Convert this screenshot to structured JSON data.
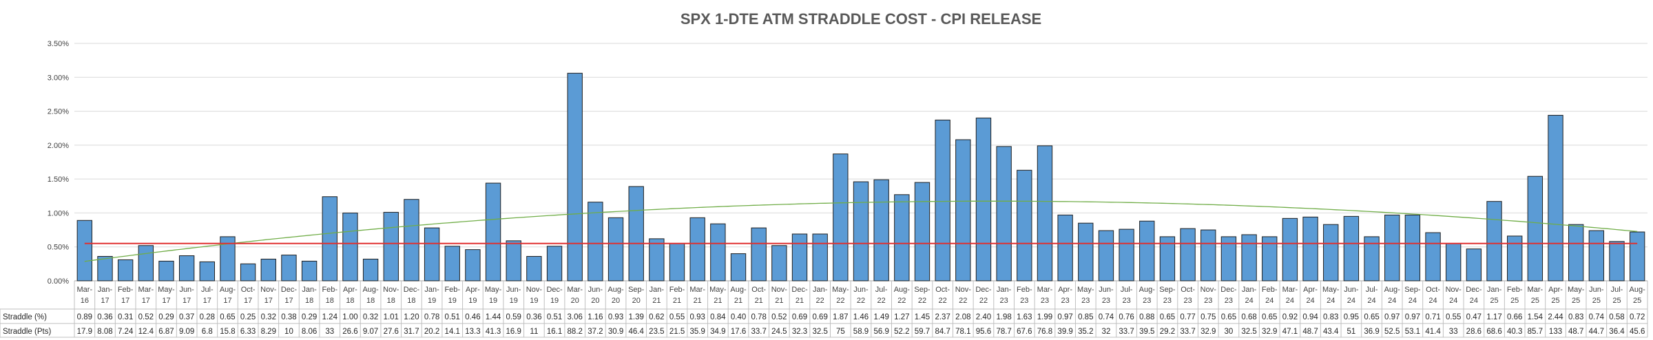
{
  "chart_data": {
    "type": "bar",
    "title": "SPX 1-DTE ATM STRADDLE COST - CPI RELEASE",
    "xlabel": "",
    "ylabel": "",
    "ylim": [
      0,
      0.035
    ],
    "yticks": [
      "0.00%",
      "0.50%",
      "1.00%",
      "1.50%",
      "2.00%",
      "2.50%",
      "3.00%",
      "3.50%"
    ],
    "categories": [
      [
        "Mar-",
        "16"
      ],
      [
        "Jan-",
        "17"
      ],
      [
        "Feb-",
        "17"
      ],
      [
        "Mar-",
        "17"
      ],
      [
        "May-",
        "17"
      ],
      [
        "Jun-",
        "17"
      ],
      [
        "Jul-",
        "17"
      ],
      [
        "Aug-",
        "17"
      ],
      [
        "Oct-",
        "17"
      ],
      [
        "Nov-",
        "17"
      ],
      [
        "Dec-",
        "17"
      ],
      [
        "Jan-",
        "18"
      ],
      [
        "Feb-",
        "18"
      ],
      [
        "Apr-",
        "18"
      ],
      [
        "Aug-",
        "18"
      ],
      [
        "Nov-",
        "18"
      ],
      [
        "Dec-",
        "18"
      ],
      [
        "Jan-",
        "19"
      ],
      [
        "Feb-",
        "19"
      ],
      [
        "Apr-",
        "19"
      ],
      [
        "May-",
        "19"
      ],
      [
        "Jun-",
        "19"
      ],
      [
        "Nov-",
        "19"
      ],
      [
        "Dec-",
        "19"
      ],
      [
        "Mar-",
        "20"
      ],
      [
        "Jun-",
        "20"
      ],
      [
        "Aug-",
        "20"
      ],
      [
        "Sep-",
        "20"
      ],
      [
        "Jan-",
        "21"
      ],
      [
        "Feb-",
        "21"
      ],
      [
        "Mar-",
        "21"
      ],
      [
        "May-",
        "21"
      ],
      [
        "Aug-",
        "21"
      ],
      [
        "Oct-",
        "21"
      ],
      [
        "Nov-",
        "21"
      ],
      [
        "Dec-",
        "21"
      ],
      [
        "Jan-",
        "22"
      ],
      [
        "May-",
        "22"
      ],
      [
        "Jun-",
        "22"
      ],
      [
        "Jul-",
        "22"
      ],
      [
        "Aug-",
        "22"
      ],
      [
        "Sep-",
        "22"
      ],
      [
        "Oct-",
        "22"
      ],
      [
        "Nov-",
        "22"
      ],
      [
        "Dec-",
        "22"
      ],
      [
        "Jan-",
        "23"
      ],
      [
        "Feb-",
        "23"
      ],
      [
        "Mar-",
        "23"
      ],
      [
        "Apr-",
        "23"
      ],
      [
        "May-",
        "23"
      ],
      [
        "Jun-",
        "23"
      ],
      [
        "Jul-",
        "23"
      ],
      [
        "Aug-",
        "23"
      ],
      [
        "Sep-",
        "23"
      ],
      [
        "Oct-",
        "23"
      ],
      [
        "Nov-",
        "23"
      ],
      [
        "Dec-",
        "23"
      ],
      [
        "Jan-",
        "24"
      ],
      [
        "Feb-",
        "24"
      ],
      [
        "Mar-",
        "24"
      ],
      [
        "Apr-",
        "24"
      ],
      [
        "May-",
        "24"
      ],
      [
        "Jun-",
        "24"
      ],
      [
        "Jul-",
        "24"
      ],
      [
        "Aug-",
        "24"
      ],
      [
        "Sep-",
        "24"
      ],
      [
        "Oct-",
        "24"
      ],
      [
        "Nov-",
        "24"
      ],
      [
        "Dec-",
        "24"
      ],
      [
        "Jan-",
        "25"
      ],
      [
        "Feb-",
        "25"
      ],
      [
        "Mar-",
        "25"
      ],
      [
        "Apr-",
        "25"
      ],
      [
        "May-",
        "25"
      ],
      [
        "Jun-",
        "25"
      ],
      [
        "Jul-",
        "25"
      ],
      [
        "Aug-",
        "25"
      ]
    ],
    "series": [
      {
        "name": "Straddle (%)",
        "color": "#5B9BD5",
        "labels": [
          "0.89",
          "0.36",
          "0.31",
          "0.52",
          "0.29",
          "0.37",
          "0.28",
          "0.65",
          "0.25",
          "0.32",
          "0.38",
          "0.29",
          "1.24",
          "1.00",
          "0.32",
          "1.01",
          "1.20",
          "0.78",
          "0.51",
          "0.46",
          "1.44",
          "0.59",
          "0.36",
          "0.51",
          "3.06",
          "1.16",
          "0.93",
          "1.39",
          "0.62",
          "0.55",
          "0.93",
          "0.84",
          "0.40",
          "0.78",
          "0.52",
          "0.69",
          "0.69",
          "1.87",
          "1.46",
          "1.49",
          "1.27",
          "1.45",
          "2.37",
          "2.08",
          "2.40",
          "1.98",
          "1.63",
          "1.99",
          "0.97",
          "0.85",
          "0.74",
          "0.76",
          "0.88",
          "0.65",
          "0.77",
          "0.75",
          "0.65",
          "0.68",
          "0.65",
          "0.92",
          "0.94",
          "0.83",
          "0.95",
          "0.65",
          "0.97",
          "0.97",
          "0.71",
          "0.55",
          "0.47",
          "1.17",
          "0.66",
          "1.54",
          "2.44",
          "0.83",
          "0.74",
          "0.58",
          "0.72"
        ]
      },
      {
        "name": "Straddle (Pts)",
        "labels": [
          "17.9",
          "8.08",
          "7.24",
          "12.4",
          "6.87",
          "9.09",
          "6.8",
          "15.8",
          "6.33",
          "8.29",
          "10",
          "8.06",
          "33",
          "26.6",
          "9.07",
          "27.6",
          "31.7",
          "20.2",
          "14.1",
          "13.3",
          "41.3",
          "16.9",
          "11",
          "16.1",
          "88.2",
          "37.2",
          "30.9",
          "46.4",
          "23.5",
          "21.5",
          "35.9",
          "34.9",
          "17.6",
          "33.7",
          "24.5",
          "32.3",
          "32.5",
          "75",
          "58.9",
          "56.9",
          "52.2",
          "59.7",
          "84.7",
          "78.1",
          "95.6",
          "78.7",
          "67.6",
          "76.8",
          "39.9",
          "35.2",
          "32",
          "33.7",
          "39.5",
          "29.2",
          "33.7",
          "32.9",
          "30",
          "32.5",
          "32.9",
          "47.1",
          "48.7",
          "43.4",
          "51",
          "36.9",
          "52.5",
          "53.1",
          "41.4",
          "33",
          "28.6",
          "68.6",
          "40.3",
          "85.7",
          "133",
          "48.7",
          "44.7",
          "36.4",
          "45.6"
        ]
      }
    ],
    "mean_line": {
      "value": 0.0055,
      "color": "#E03030"
    },
    "trend_line": {
      "type": "polynomial",
      "color": "#70AD47"
    },
    "legend": "none",
    "grid": true
  }
}
